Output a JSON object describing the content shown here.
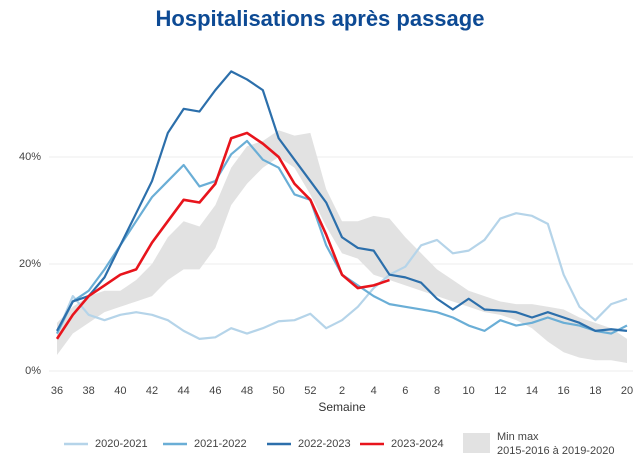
{
  "chart_data": {
    "type": "line",
    "title": "Hospitalisations après passage",
    "x_label": "Semaine",
    "categories": [
      "36",
      null,
      "38",
      null,
      "40",
      null,
      "42",
      null,
      "44",
      null,
      "46",
      null,
      "48",
      null,
      "50",
      null,
      "52",
      null,
      "2",
      null,
      "4",
      null,
      "6",
      null,
      "8",
      null,
      "10",
      null,
      "12",
      null,
      "14",
      null,
      "16",
      null,
      "18",
      null,
      "20"
    ],
    "ylim": [
      0,
      60
    ],
    "yticks": [
      {
        "value": 0,
        "label": "0%"
      },
      {
        "value": 20,
        "label": "20%"
      },
      {
        "value": 40,
        "label": "40%"
      }
    ],
    "grid": true,
    "band": {
      "name": "Min max",
      "period": "2015-2016 à 2019-2020",
      "color": "#e2e2e2",
      "high": [
        9,
        12,
        14,
        15,
        15,
        17,
        20,
        25,
        28,
        27,
        31,
        38,
        42,
        43,
        45,
        44,
        44.5,
        34,
        28,
        28,
        29,
        28.5,
        25,
        22,
        19,
        17,
        15,
        14,
        13,
        12.5,
        12.5,
        12,
        11.5,
        10,
        9,
        8,
        6
      ],
      "low": [
        3,
        7,
        9,
        11,
        12,
        13,
        14,
        17,
        19,
        19,
        23,
        31,
        35,
        38,
        40,
        38,
        33,
        27,
        22,
        21,
        18,
        17,
        16,
        15,
        14,
        13,
        12,
        11,
        10.5,
        9.5,
        8,
        5.5,
        3.5,
        2.5,
        2,
        2,
        1.5
      ]
    },
    "series": [
      {
        "name": "2020-2021",
        "color": "#b5d4e9",
        "values": [
          7,
          14,
          10.5,
          9.5,
          10.5,
          11,
          10.5,
          9.5,
          7.5,
          6,
          6.3,
          8,
          7,
          8,
          9.3,
          9.5,
          10.7,
          8,
          9.5,
          12,
          15.5,
          18,
          19.5,
          23.5,
          24.5,
          22,
          22.5,
          24.5,
          28.5,
          29.5,
          29,
          27.5,
          18,
          12,
          9.5,
          12.5,
          13.5
        ]
      },
      {
        "name": "2021-2022",
        "color": "#6aaed6",
        "values": [
          7,
          13,
          15,
          19,
          23.5,
          28,
          32.5,
          35.5,
          38.5,
          34.5,
          35.5,
          40.5,
          43,
          39.5,
          38,
          33,
          32,
          23.5,
          18,
          16,
          14,
          12.5,
          12,
          11.5,
          11,
          10,
          8.5,
          7.5,
          9.5,
          8.5,
          9,
          10,
          9,
          8.5,
          7.5,
          7,
          8.5
        ]
      },
      {
        "name": "2022-2023",
        "color": "#2c6fab",
        "values": [
          7.5,
          13,
          14,
          17.5,
          23.5,
          29.5,
          35.5,
          44.5,
          49,
          48.5,
          52.5,
          56,
          54.5,
          52.5,
          43.5,
          39.5,
          35.5,
          31.5,
          25,
          23,
          22.5,
          18,
          17.5,
          16.5,
          13.5,
          11.5,
          13.5,
          11.5,
          11.3,
          11,
          10,
          11,
          10,
          9,
          7.5,
          7.8,
          7.5
        ]
      },
      {
        "name": "2023-2024",
        "color": "#e8141c",
        "values": [
          6,
          10.5,
          14,
          16,
          18,
          19,
          24,
          28,
          32,
          31.5,
          35,
          43.5,
          44.5,
          42.5,
          40,
          35,
          32,
          25.5,
          18,
          15.5,
          16,
          17,
          null,
          null,
          null,
          null,
          null,
          null,
          null,
          null,
          null,
          null,
          null,
          null,
          null,
          null,
          null
        ]
      }
    ]
  }
}
